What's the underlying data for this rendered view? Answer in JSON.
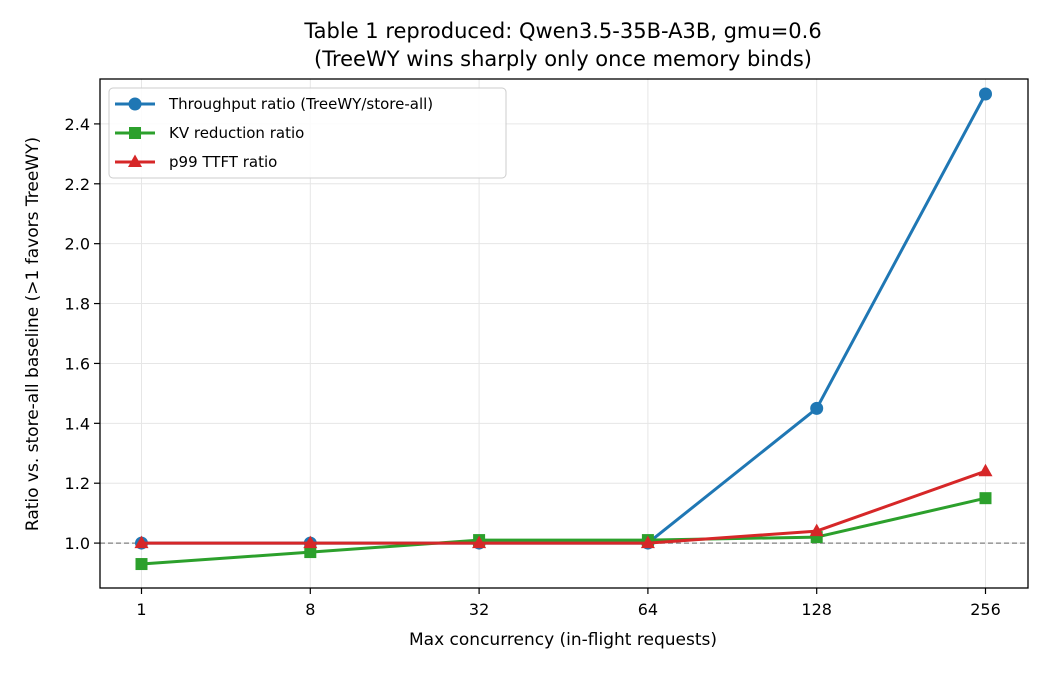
{
  "chart_data": {
    "type": "line",
    "title": "Table 1 reproduced: Qwen3.5-35B-A3B, gmu=0.6",
    "subtitle": "(TreeWY wins sharply only once memory binds)",
    "xlabel": "Max concurrency (in-flight requests)",
    "ylabel": "Ratio vs. store-all baseline (>1 favors TreeWY)",
    "x_scale": "categorical",
    "categories": [
      "1",
      "8",
      "32",
      "64",
      "128",
      "256"
    ],
    "ylim": [
      0.85,
      2.55
    ],
    "yticks": [
      "1.0",
      "1.2",
      "1.4",
      "1.6",
      "1.8",
      "2.0",
      "2.2",
      "2.4"
    ],
    "ytick_values": [
      1.0,
      1.2,
      1.4,
      1.6,
      1.8,
      2.0,
      2.2,
      2.4
    ],
    "grid": true,
    "legend_position": "top-left",
    "reference_line": {
      "y": 1.0,
      "style": "dashed",
      "color": "#808080"
    },
    "series": [
      {
        "name": "Throughput ratio (TreeWY/store-all)",
        "color": "#1f77b4",
        "marker": "circle",
        "values": [
          1.0,
          1.0,
          1.0,
          1.0,
          1.45,
          2.5
        ]
      },
      {
        "name": "KV reduction ratio",
        "color": "#2ca02c",
        "marker": "square",
        "values": [
          0.93,
          0.97,
          1.01,
          1.01,
          1.02,
          1.15
        ]
      },
      {
        "name": "p99 TTFT ratio",
        "color": "#d62728",
        "marker": "triangle",
        "values": [
          1.0,
          1.0,
          1.0,
          1.0,
          1.04,
          1.24
        ]
      }
    ]
  }
}
